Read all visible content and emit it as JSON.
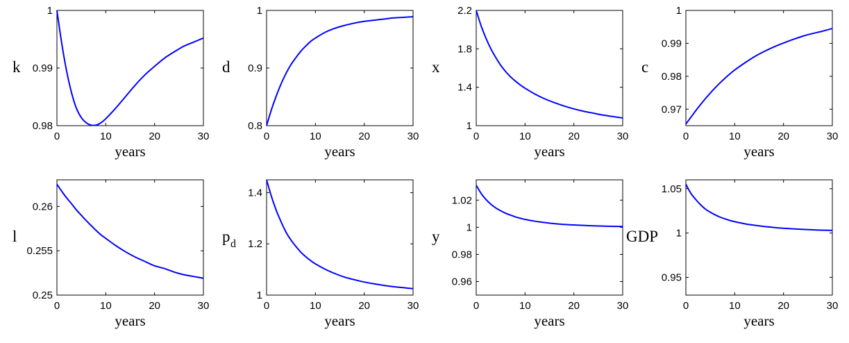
{
  "chart_data": [
    {
      "type": "line",
      "ylabel": "k",
      "xlabel": "years",
      "xlim": [
        0,
        30
      ],
      "ylim": [
        0.98,
        1.0
      ],
      "xticks": [
        0,
        10,
        20,
        30
      ],
      "yticks": [
        0.98,
        0.99,
        1.0
      ],
      "ytick_labels": [
        "0.98",
        "0.99",
        "1"
      ],
      "line_color": "#0000ff",
      "series": [
        {
          "x": [
            0,
            1,
            2,
            3,
            4,
            5,
            6,
            7,
            8,
            9,
            10,
            12,
            14,
            16,
            18,
            20,
            22,
            24,
            26,
            28,
            30
          ],
          "y": [
            1.0,
            0.9942,
            0.9894,
            0.9857,
            0.983,
            0.9814,
            0.9805,
            0.9801,
            0.9801,
            0.9805,
            0.9812,
            0.983,
            0.985,
            0.987,
            0.9888,
            0.9903,
            0.9917,
            0.9928,
            0.9938,
            0.9945,
            0.9952
          ]
        }
      ]
    },
    {
      "type": "line",
      "ylabel": "d",
      "xlabel": "years",
      "xlim": [
        0,
        30
      ],
      "ylim": [
        0.8,
        1.0
      ],
      "xticks": [
        0,
        10,
        20,
        30
      ],
      "yticks": [
        0.8,
        0.9,
        1.0
      ],
      "ytick_labels": [
        "0.8",
        "0.9",
        "1"
      ],
      "line_color": "#0000ff",
      "series": [
        {
          "x": [
            0,
            1,
            2,
            3,
            4,
            5,
            6,
            7,
            8,
            9,
            10,
            12,
            14,
            16,
            18,
            20,
            22,
            24,
            26,
            28,
            30
          ],
          "y": [
            0.8,
            0.828,
            0.852,
            0.873,
            0.891,
            0.906,
            0.918,
            0.929,
            0.938,
            0.946,
            0.952,
            0.962,
            0.969,
            0.974,
            0.978,
            0.981,
            0.983,
            0.985,
            0.987,
            0.988,
            0.989
          ]
        }
      ]
    },
    {
      "type": "line",
      "ylabel": "x",
      "xlabel": "years",
      "xlim": [
        0,
        30
      ],
      "ylim": [
        1.0,
        2.2
      ],
      "xticks": [
        0,
        10,
        20,
        30
      ],
      "yticks": [
        1.0,
        1.4,
        1.8,
        2.2
      ],
      "ytick_labels": [
        "1",
        "1.4",
        "1.8",
        "2.2"
      ],
      "line_color": "#0000ff",
      "series": [
        {
          "x": [
            0,
            1,
            2,
            3,
            4,
            5,
            6,
            7,
            8,
            9,
            10,
            12,
            14,
            16,
            18,
            20,
            22,
            24,
            26,
            28,
            30
          ],
          "y": [
            2.2,
            2.04,
            1.91,
            1.8,
            1.71,
            1.63,
            1.565,
            1.51,
            1.465,
            1.425,
            1.39,
            1.33,
            1.28,
            1.24,
            1.205,
            1.175,
            1.15,
            1.13,
            1.11,
            1.095,
            1.08
          ]
        }
      ]
    },
    {
      "type": "line",
      "ylabel": "c",
      "xlabel": "years",
      "xlim": [
        0,
        30
      ],
      "ylim": [
        0.965,
        1.0
      ],
      "xticks": [
        0,
        10,
        20,
        30
      ],
      "yticks": [
        0.97,
        0.98,
        0.99,
        1.0
      ],
      "ytick_labels": [
        "0.97",
        "0.98",
        "0.99",
        "1"
      ],
      "line_color": "#0000ff",
      "series": [
        {
          "x": [
            0,
            1,
            2,
            3,
            4,
            5,
            6,
            7,
            8,
            9,
            10,
            12,
            14,
            16,
            18,
            20,
            22,
            24,
            26,
            28,
            30
          ],
          "y": [
            0.9655,
            0.9675,
            0.9695,
            0.9714,
            0.9732,
            0.9749,
            0.9765,
            0.978,
            0.9794,
            0.9807,
            0.9819,
            0.984,
            0.9859,
            0.9875,
            0.9889,
            0.9901,
            0.9912,
            0.9922,
            0.993,
            0.9937,
            0.9945
          ]
        }
      ]
    },
    {
      "type": "line",
      "ylabel": "l",
      "xlabel": "years",
      "xlim": [
        0,
        30
      ],
      "ylim": [
        0.25,
        0.263
      ],
      "xticks": [
        0,
        10,
        20,
        30
      ],
      "yticks": [
        0.25,
        0.255,
        0.26
      ],
      "ytick_labels": [
        "0.25",
        "0.255",
        "0.26"
      ],
      "line_color": "#0000ff",
      "series": [
        {
          "x": [
            0,
            1,
            2,
            3,
            4,
            5,
            6,
            7,
            8,
            9,
            10,
            12,
            14,
            16,
            18,
            20,
            22,
            24,
            26,
            28,
            30
          ],
          "y": [
            0.2625,
            0.2617,
            0.26095,
            0.2603,
            0.2596,
            0.259,
            0.2584,
            0.25785,
            0.2573,
            0.2568,
            0.2564,
            0.2556,
            0.2549,
            0.2543,
            0.2538,
            0.2533,
            0.253,
            0.2526,
            0.2523,
            0.2521,
            0.2519
          ]
        }
      ]
    },
    {
      "type": "line",
      "ylabel": "p",
      "ylabel_sub": "d",
      "xlabel": "years",
      "xlim": [
        0,
        30
      ],
      "ylim": [
        1.0,
        1.45
      ],
      "xticks": [
        0,
        10,
        20,
        30
      ],
      "yticks": [
        1.0,
        1.2,
        1.4
      ],
      "ytick_labels": [
        "1",
        "1.2",
        "1.4"
      ],
      "line_color": "#0000ff",
      "series": [
        {
          "x": [
            0,
            1,
            2,
            3,
            4,
            5,
            6,
            7,
            8,
            9,
            10,
            12,
            14,
            16,
            18,
            20,
            22,
            24,
            26,
            28,
            30
          ],
          "y": [
            1.45,
            1.385,
            1.33,
            1.285,
            1.245,
            1.215,
            1.19,
            1.168,
            1.15,
            1.135,
            1.122,
            1.101,
            1.084,
            1.07,
            1.06,
            1.051,
            1.044,
            1.038,
            1.033,
            1.029,
            1.025
          ]
        }
      ]
    },
    {
      "type": "line",
      "ylabel": "y",
      "xlabel": "years",
      "xlim": [
        0,
        30
      ],
      "ylim": [
        0.95,
        1.035
      ],
      "xticks": [
        0,
        10,
        20,
        30
      ],
      "yticks": [
        0.96,
        0.98,
        1.0,
        1.02
      ],
      "ytick_labels": [
        "0.96",
        "0.98",
        "1",
        "1.02"
      ],
      "line_color": "#0000ff",
      "series": [
        {
          "x": [
            0,
            1,
            2,
            3,
            4,
            5,
            6,
            7,
            8,
            9,
            10,
            12,
            14,
            16,
            18,
            20,
            22,
            24,
            26,
            28,
            30
          ],
          "y": [
            1.031,
            1.025,
            1.0205,
            1.017,
            1.0143,
            1.0122,
            1.0104,
            1.009,
            1.0077,
            1.0067,
            1.0058,
            1.0045,
            1.0035,
            1.0027,
            1.0021,
            1.0017,
            1.0014,
            1.0011,
            1.0009,
            1.0007,
            1.0006
          ]
        }
      ]
    },
    {
      "type": "line",
      "ylabel": "GDP",
      "xlabel": "years",
      "xlim": [
        0,
        30
      ],
      "ylim": [
        0.93,
        1.06
      ],
      "xticks": [
        0,
        10,
        20,
        30
      ],
      "yticks": [
        0.95,
        1.0,
        1.05
      ],
      "ytick_labels": [
        "0.95",
        "1",
        "1.05"
      ],
      "line_color": "#0000ff",
      "series": [
        {
          "x": [
            0,
            1,
            2,
            3,
            4,
            5,
            6,
            7,
            8,
            9,
            10,
            12,
            14,
            16,
            18,
            20,
            22,
            24,
            26,
            28,
            30
          ],
          "y": [
            1.055,
            1.045,
            1.038,
            1.032,
            1.027,
            1.0235,
            1.0205,
            1.018,
            1.016,
            1.0142,
            1.0128,
            1.0105,
            1.0088,
            1.0074,
            1.0063,
            1.0054,
            1.0047,
            1.0041,
            1.0036,
            1.0032,
            1.003
          ]
        }
      ]
    }
  ]
}
